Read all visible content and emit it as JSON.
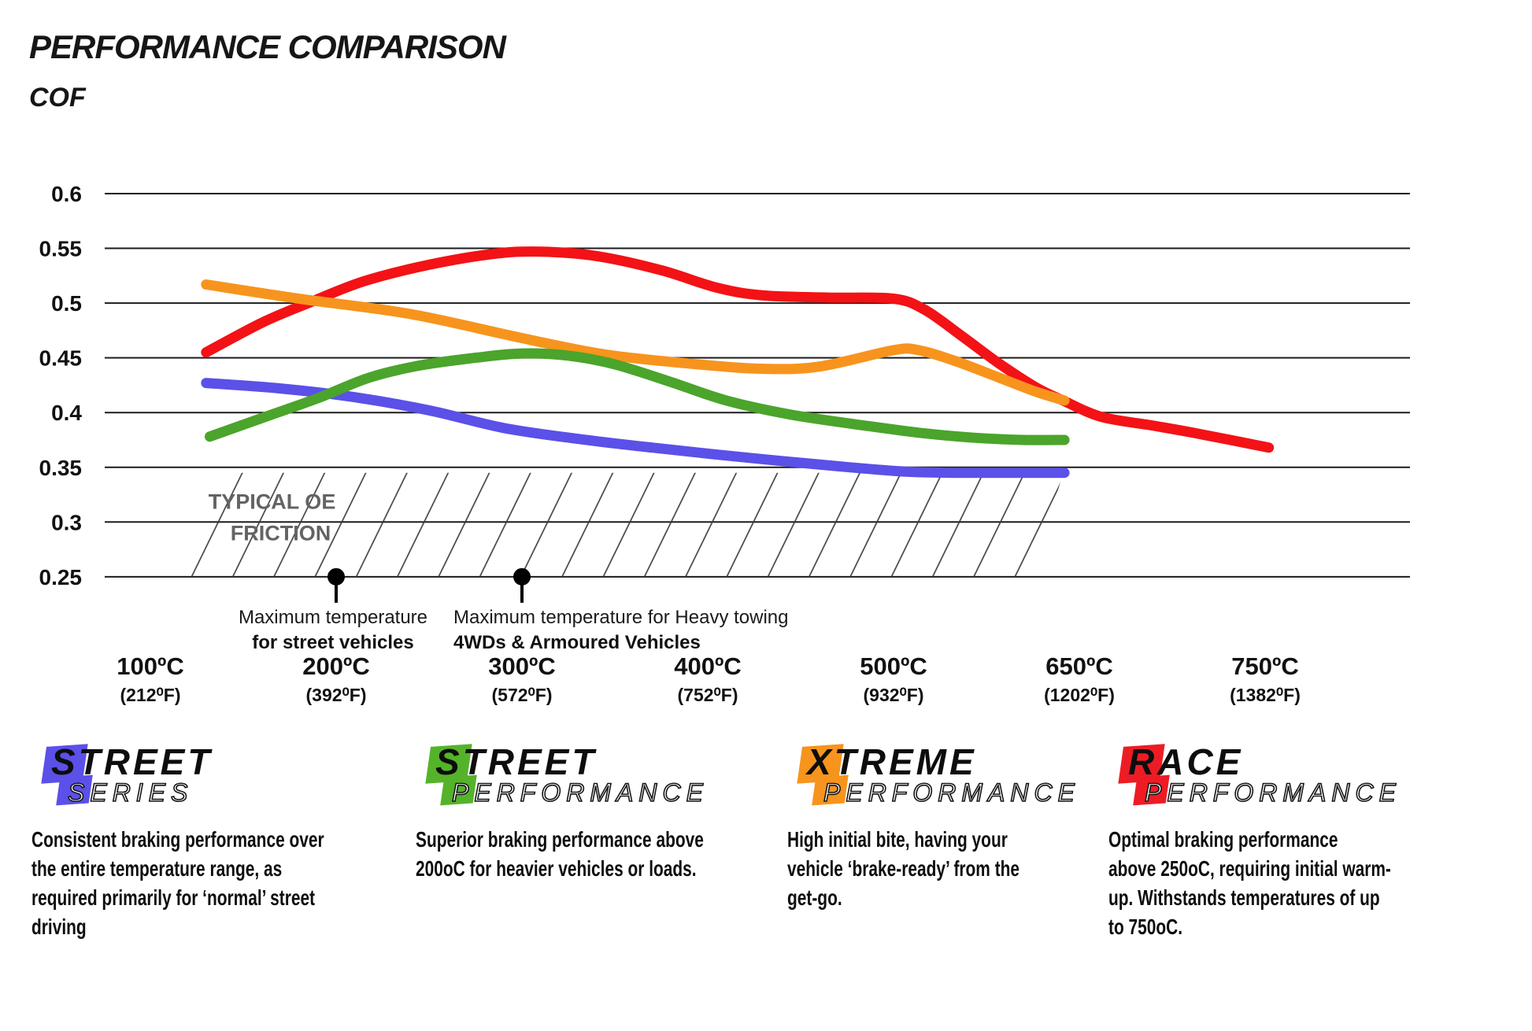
{
  "header": {
    "title": "PERFORMANCE COMPARISON",
    "ylabel": "COF"
  },
  "chart_data": {
    "type": "line",
    "title": "PERFORMANCE COMPARISON",
    "ylabel": "COF",
    "ylim": [
      0.25,
      0.6
    ],
    "ytick_step": 0.05,
    "grid": "horizontal",
    "yticks": [
      "0.6",
      "0.55",
      "0.5",
      "0.45",
      "0.4",
      "0.35",
      "0.3",
      "0.25"
    ],
    "x_categories": [
      {
        "t": 100,
        "c_label": "100ºC",
        "f_label": "(212⁰F)"
      },
      {
        "t": 200,
        "c_label": "200ºC",
        "f_label": "(392⁰F)"
      },
      {
        "t": 300,
        "c_label": "300ºC",
        "f_label": "(572⁰F)"
      },
      {
        "t": 400,
        "c_label": "400ºC",
        "f_label": "(752⁰F)"
      },
      {
        "t": 500,
        "c_label": "500ºC",
        "f_label": "(932⁰F)"
      },
      {
        "t": 650,
        "c_label": "650ºC",
        "f_label": "(1202⁰F)"
      },
      {
        "t": 750,
        "c_label": "750ºC",
        "f_label": "(1382⁰F)"
      }
    ],
    "series": [
      {
        "name": "Race Performance",
        "color": "#f31216",
        "points": [
          [
            130,
            0.455
          ],
          [
            160,
            0.482
          ],
          [
            185,
            0.5
          ],
          [
            215,
            0.52
          ],
          [
            250,
            0.535
          ],
          [
            285,
            0.545
          ],
          [
            310,
            0.547
          ],
          [
            340,
            0.543
          ],
          [
            375,
            0.53
          ],
          [
            405,
            0.514
          ],
          [
            430,
            0.507
          ],
          [
            465,
            0.505
          ],
          [
            500,
            0.504
          ],
          [
            525,
            0.494
          ],
          [
            555,
            0.47
          ],
          [
            585,
            0.445
          ],
          [
            615,
            0.423
          ],
          [
            637,
            0.411
          ],
          [
            662,
            0.396
          ],
          [
            690,
            0.388
          ],
          [
            713,
            0.381
          ],
          [
            752,
            0.368
          ]
        ]
      },
      {
        "name": "Xtreme Performance",
        "color": "#f7941d",
        "points": [
          [
            130,
            0.517
          ],
          [
            180,
            0.504
          ],
          [
            240,
            0.49
          ],
          [
            300,
            0.468
          ],
          [
            345,
            0.453
          ],
          [
            395,
            0.444
          ],
          [
            430,
            0.44
          ],
          [
            460,
            0.442
          ],
          [
            500,
            0.457
          ],
          [
            520,
            0.457
          ],
          [
            550,
            0.447
          ],
          [
            585,
            0.432
          ],
          [
            615,
            0.419
          ],
          [
            638,
            0.411
          ]
        ]
      },
      {
        "name": "Street Series",
        "color": "#5b50e8",
        "points": [
          [
            130,
            0.427
          ],
          [
            170,
            0.422
          ],
          [
            210,
            0.414
          ],
          [
            250,
            0.402
          ],
          [
            290,
            0.386
          ],
          [
            330,
            0.376
          ],
          [
            370,
            0.368
          ],
          [
            420,
            0.359
          ],
          [
            470,
            0.351
          ],
          [
            510,
            0.346
          ],
          [
            550,
            0.345
          ],
          [
            600,
            0.345
          ],
          [
            638,
            0.345
          ]
        ]
      },
      {
        "name": "Street Performance",
        "color": "#4ba42b",
        "points": [
          [
            132,
            0.378
          ],
          [
            160,
            0.395
          ],
          [
            190,
            0.413
          ],
          [
            218,
            0.432
          ],
          [
            245,
            0.443
          ],
          [
            275,
            0.45
          ],
          [
            300,
            0.454
          ],
          [
            325,
            0.452
          ],
          [
            350,
            0.444
          ],
          [
            380,
            0.428
          ],
          [
            410,
            0.411
          ],
          [
            445,
            0.398
          ],
          [
            485,
            0.388
          ],
          [
            525,
            0.381
          ],
          [
            565,
            0.377
          ],
          [
            605,
            0.375
          ],
          [
            638,
            0.375
          ]
        ]
      }
    ],
    "oe_band": {
      "label_line1": "TYPICAL OE",
      "label_line2": "FRICTION",
      "v_top": 0.345,
      "v_bottom": 0.25,
      "t_start": 130,
      "t_end": 637
    },
    "annotations": [
      {
        "t": 200,
        "v": 0.25,
        "align": "center",
        "line1": "Maximum temperature",
        "line2": "for street vehicles"
      },
      {
        "t": 300,
        "v": 0.25,
        "align": "left",
        "line1": "Maximum temperature for Heavy towing",
        "line2": "4WDs & Armoured Vehicles"
      }
    ],
    "colors": {
      "grid": "#1c1c1c",
      "hatch": "#3a3a3a",
      "oe_label": "#636363",
      "marker": "#000000"
    }
  },
  "legend": {
    "items": [
      {
        "word1": "STREET",
        "word2": "SERIES",
        "color": "#5b50e8",
        "desc_lines": [
          "Consistent braking performance over",
          "the entire temperature range, as",
          "required primarily for ‘normal’ street",
          "driving"
        ]
      },
      {
        "word1": "STREET",
        "word2": "PERFORMANCE",
        "color": "#55b32a",
        "desc_lines": [
          "Superior braking performance above",
          "200oC for heavier vehicles or loads."
        ]
      },
      {
        "word1": "XTREME",
        "word2": "PERFORMANCE",
        "color": "#f7941d",
        "desc_lines": [
          "High initial bite, having your",
          "vehicle ‘brake-ready’ from the",
          "get-go."
        ]
      },
      {
        "word1": "RACE",
        "word2": "PERFORMANCE",
        "color": "#ed1c24",
        "desc_lines": [
          "Optimal braking performance",
          "above 250oC, requiring initial warm-",
          "up. Withstands temperatures of up",
          "to 750oC."
        ]
      }
    ]
  }
}
